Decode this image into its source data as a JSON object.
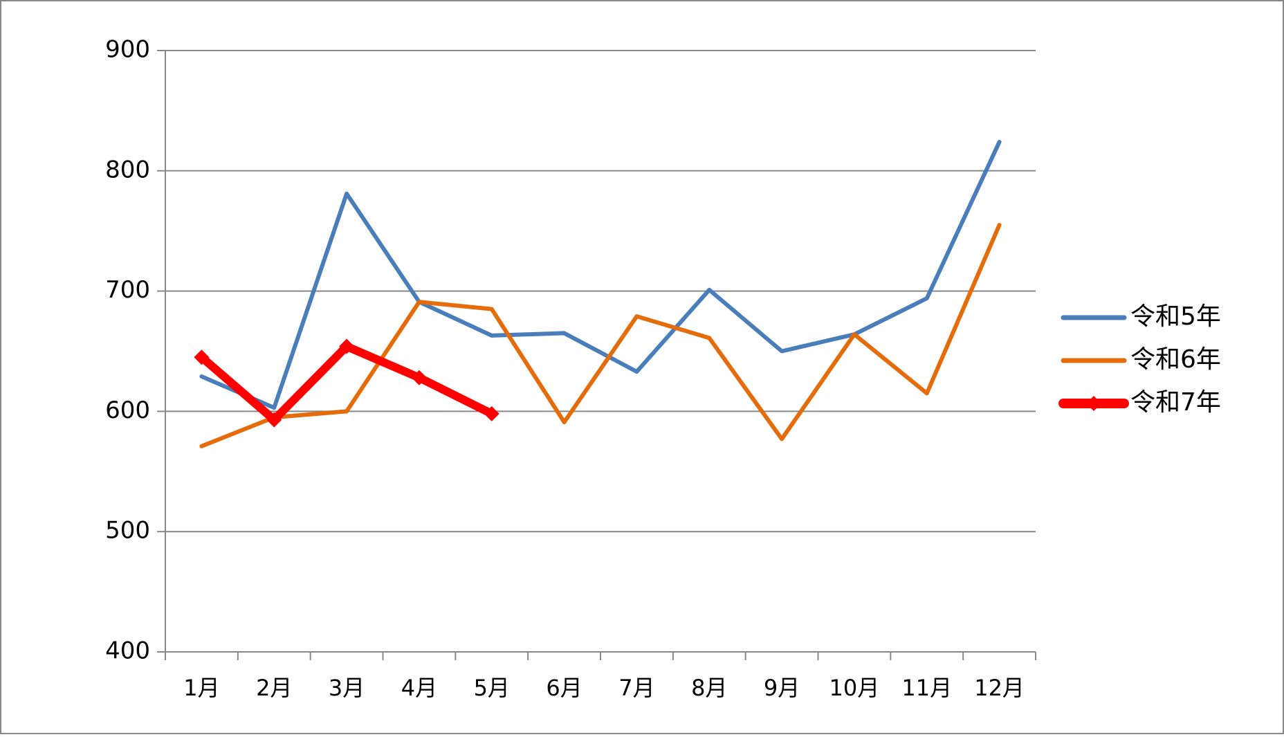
{
  "chart_data": {
    "type": "line",
    "categories": [
      "1月",
      "2月",
      "3月",
      "4月",
      "5月",
      "6月",
      "7月",
      "8月",
      "9月",
      "10月",
      "11月",
      "12月"
    ],
    "series": [
      {
        "name": "令和5年",
        "color": "#4a7ebb",
        "values": [
          629,
          603,
          781,
          691,
          663,
          665,
          633,
          701,
          650,
          664,
          694,
          824
        ]
      },
      {
        "name": "令和6年",
        "color": "#e46c0a",
        "values": [
          571,
          595,
          600,
          691,
          685,
          591,
          679,
          661,
          577,
          664,
          615,
          755
        ]
      },
      {
        "name": "令和7年",
        "color": "#ff0000",
        "marker": "diamond",
        "values": [
          645,
          593,
          654,
          628,
          598,
          null,
          null,
          null,
          null,
          null,
          null,
          null
        ]
      }
    ],
    "ylim": [
      400,
      900
    ],
    "yticks": [
      400,
      500,
      600,
      700,
      800,
      900
    ],
    "grid": true,
    "legend": "right"
  }
}
